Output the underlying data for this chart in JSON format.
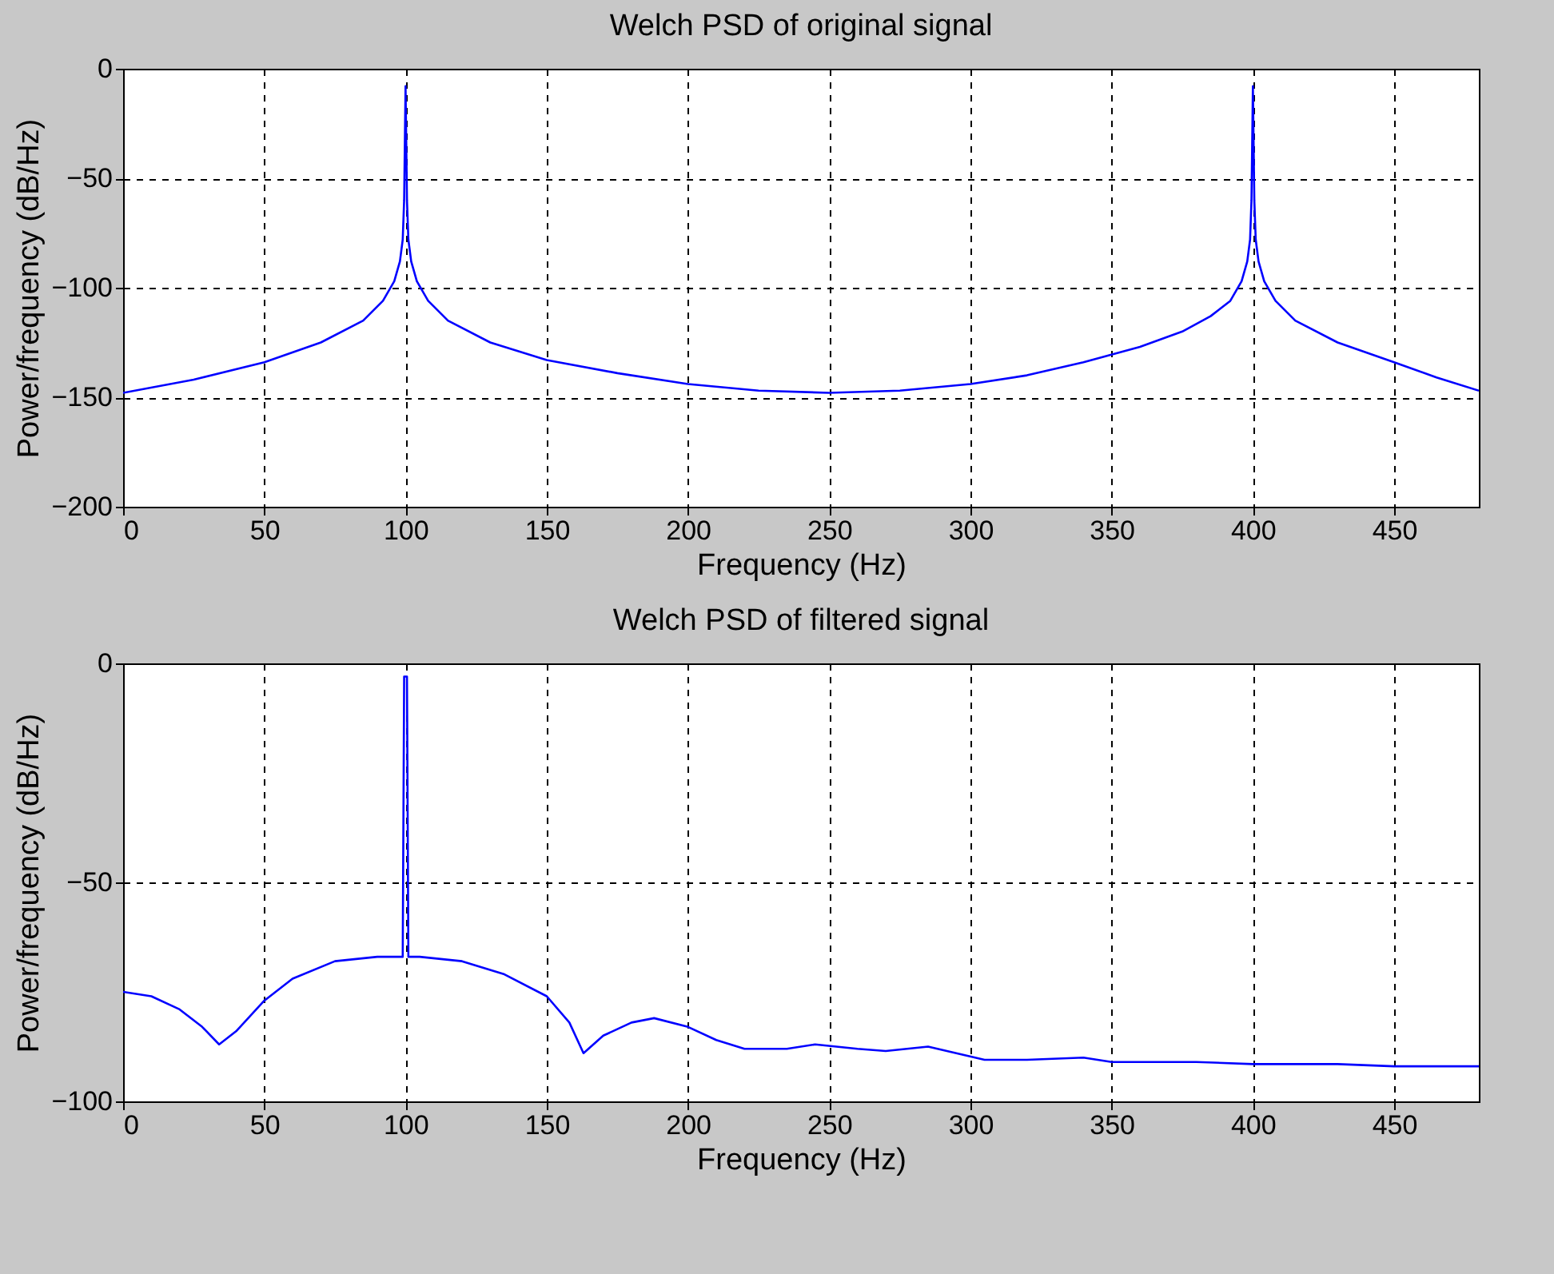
{
  "chart_data": [
    {
      "type": "line",
      "title": "Welch PSD of original signal",
      "xlabel": "Frequency (Hz)",
      "ylabel": "Power/frequency (dB/Hz)",
      "color": "#0000ff",
      "grid": true,
      "x": [
        0,
        25,
        50,
        70,
        85,
        92,
        96,
        98,
        99,
        99.5,
        100,
        100.5,
        101,
        102,
        104,
        108,
        115,
        130,
        150,
        175,
        200,
        225,
        250,
        275,
        300,
        320,
        340,
        360,
        375,
        385,
        392,
        396,
        398,
        399,
        399.5,
        400,
        400.5,
        401,
        402,
        404,
        408,
        415,
        430,
        450,
        465,
        480
      ],
      "values": [
        -148,
        -142,
        -134,
        -125,
        -115,
        -106,
        -97,
        -88,
        -78,
        -60,
        -8,
        -60,
        -78,
        -88,
        -97,
        -106,
        -115,
        -125,
        -133,
        -139,
        -144,
        -147,
        -148,
        -147,
        -144,
        -140,
        -134,
        -127,
        -120,
        -113,
        -106,
        -97,
        -88,
        -78,
        -60,
        -8,
        -60,
        -78,
        -88,
        -97,
        -106,
        -115,
        -125,
        -134,
        -141,
        -147
      ],
      "xlim": [
        0,
        480
      ],
      "ylim": [
        -200,
        0
      ],
      "xticks": [
        0,
        50,
        100,
        150,
        200,
        250,
        300,
        350,
        400,
        450
      ],
      "yticks": [
        -200,
        -150,
        -100,
        -50,
        0
      ]
    },
    {
      "type": "line",
      "title": "Welch PSD of filtered signal",
      "xlabel": "Frequency (Hz)",
      "ylabel": "Power/frequency (dB/Hz)",
      "color": "#0000ff",
      "grid": true,
      "x": [
        0,
        10,
        20,
        28,
        34,
        40,
        50,
        60,
        75,
        90,
        99,
        99.5,
        100,
        100.5,
        101,
        105,
        120,
        135,
        150,
        158,
        163,
        170,
        180,
        188,
        200,
        210,
        220,
        235,
        245,
        260,
        270,
        285,
        295,
        305,
        320,
        340,
        350,
        380,
        400,
        430,
        450,
        480
      ],
      "values": [
        -75,
        -76,
        -79,
        -83,
        -87,
        -84,
        -77,
        -72,
        -68,
        -67,
        -67,
        -3,
        -3,
        -3,
        -67,
        -67,
        -68,
        -71,
        -76,
        -82,
        -89,
        -85,
        -82,
        -81,
        -83,
        -86,
        -88,
        -88,
        -87,
        -88,
        -88.5,
        -87.5,
        -89,
        -90.5,
        -90.5,
        -90,
        -91,
        -91,
        -91.5,
        -91.5,
        -92,
        -92
      ],
      "xlim": [
        0,
        480
      ],
      "ylim": [
        -100,
        0
      ],
      "xticks": [
        0,
        50,
        100,
        150,
        200,
        250,
        300,
        350,
        400,
        450
      ],
      "yticks": [
        -100,
        -50,
        0
      ]
    }
  ]
}
